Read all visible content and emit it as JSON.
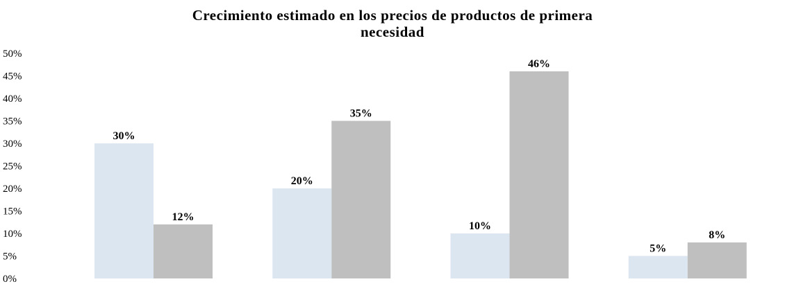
{
  "chart_data": {
    "type": "bar",
    "title_line1": "Crecimiento estimado en los precios de productos de primera",
    "title_line2": "necesidad",
    "categories": [
      "",
      "",
      "",
      ""
    ],
    "series": [
      {
        "values": [
          30,
          20,
          10,
          5
        ],
        "color": "#dce6f1"
      },
      {
        "values": [
          12,
          35,
          46,
          8
        ],
        "color": "#bfbfbf"
      }
    ],
    "data_labels": [
      [
        "30%",
        "20%",
        "10%",
        "5%"
      ],
      [
        "12%",
        "35%",
        "46%",
        "8%"
      ]
    ],
    "y_ticks": [
      "0%",
      "5%",
      "10%",
      "15%",
      "20%",
      "25%",
      "30%",
      "35%",
      "40%",
      "45%",
      "50%"
    ],
    "ylim": [
      0,
      50
    ],
    "grid": false,
    "legend": "none"
  }
}
